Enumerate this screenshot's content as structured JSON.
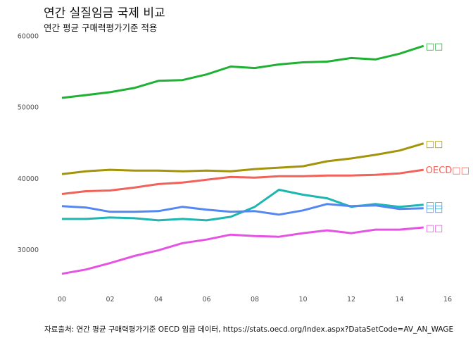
{
  "chart_data": {
    "type": "line",
    "title": "연간 실질임금 국제 비교",
    "subtitle": "연간 평균 구매력평가기준 적용",
    "caption": "자료출처: 연간 평균 구매력평가기준 OECD 임금 데이터, https://stats.oecd.org/Index.aspx?DataSetCode=AV_AN_WAGE",
    "xlabel": "",
    "ylabel": "",
    "x": [
      0,
      1,
      2,
      3,
      4,
      5,
      6,
      7,
      8,
      9,
      10,
      11,
      12,
      13,
      14,
      15
    ],
    "x_ticks": [
      0,
      2,
      4,
      6,
      8,
      10,
      12,
      14,
      16
    ],
    "x_tick_labels": [
      "00",
      "02",
      "04",
      "06",
      "08",
      "10",
      "12",
      "14",
      "16"
    ],
    "y_ticks": [
      30000,
      40000,
      50000,
      60000
    ],
    "y_tick_labels": [
      "30000",
      "40000",
      "50000",
      "60000"
    ],
    "xlim": [
      0,
      16
    ],
    "ylim": [
      24500,
      60500
    ],
    "grid": false,
    "legend": "none (direct labels at line ends)",
    "series": [
      {
        "name": "□□",
        "color": "#1FB134",
        "values": [
          51300,
          51700,
          52100,
          52700,
          53700,
          53800,
          54600,
          55700,
          55500,
          56000,
          56300,
          56400,
          56900,
          56700,
          57500,
          58600
        ]
      },
      {
        "name": "□□",
        "color": "#A3940A",
        "values": [
          40600,
          41000,
          41200,
          41100,
          41100,
          41000,
          41100,
          41000,
          41300,
          41500,
          41700,
          42400,
          42800,
          43300,
          43900,
          44900
        ]
      },
      {
        "name": "OECD□□",
        "color": "#F0625A",
        "values": [
          37800,
          38200,
          38300,
          38700,
          39200,
          39400,
          39800,
          40200,
          40100,
          40300,
          40300,
          40400,
          40400,
          40500,
          40700,
          41200
        ]
      },
      {
        "name": "□□",
        "color": "#1DB6B1",
        "values": [
          34300,
          34300,
          34500,
          34400,
          34100,
          34300,
          34100,
          34600,
          36000,
          38400,
          37700,
          37200,
          36000,
          36400,
          36000,
          36300
        ]
      },
      {
        "name": "□□",
        "color": "#5387F4",
        "values": [
          36100,
          35900,
          35300,
          35300,
          35400,
          36000,
          35600,
          35300,
          35400,
          34900,
          35500,
          36400,
          36100,
          36200,
          35700,
          35800
        ]
      },
      {
        "name": "□□",
        "color": "#E553E3",
        "values": [
          26600,
          27200,
          28100,
          29100,
          29900,
          30900,
          31400,
          32100,
          31900,
          31800,
          32300,
          32700,
          32300,
          32800,
          32800,
          33100
        ]
      }
    ]
  }
}
